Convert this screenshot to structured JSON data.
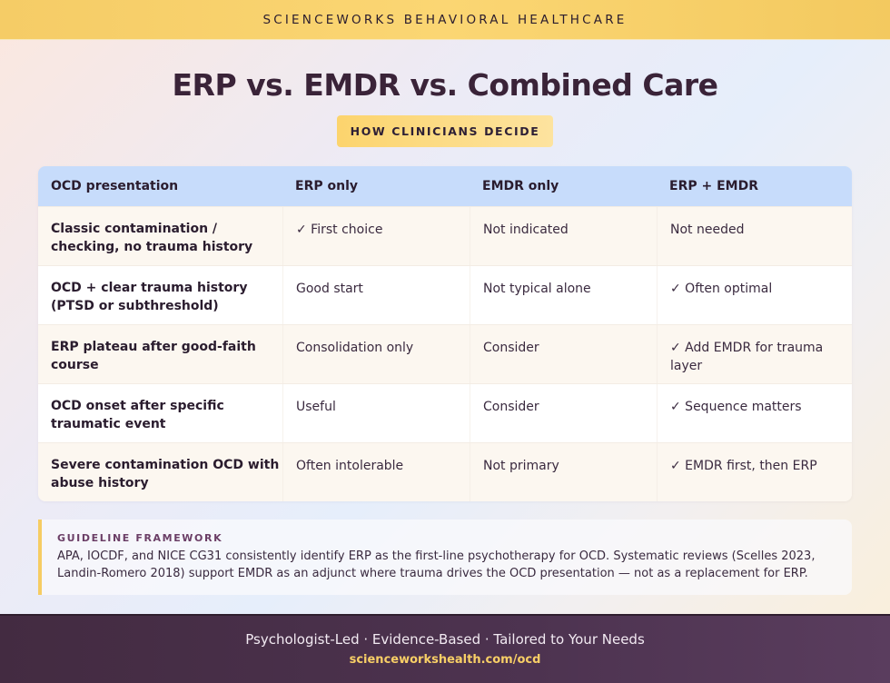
{
  "header": {
    "brand": "SCIENCEWORKS BEHAVIORAL HEALTHCARE",
    "title": "ERP vs. EMDR vs. Combined Care",
    "badge": "HOW CLINICIANS DECIDE"
  },
  "table": {
    "columns": [
      "OCD presentation",
      "ERP only",
      "EMDR only",
      "ERP + EMDR"
    ],
    "rows": [
      [
        "Classic contamination / checking, no trauma history",
        "✓ First choice",
        "Not indicated",
        "Not needed"
      ],
      [
        "OCD + clear trauma history (PTSD or subthreshold)",
        "Good start",
        "Not typical alone",
        "✓ Often optimal"
      ],
      [
        "ERP plateau after good-faith course",
        "Consolidation only",
        "Consider",
        "✓ Add EMDR for trauma layer"
      ],
      [
        "OCD onset after specific traumatic event",
        "Useful",
        "Consider",
        "✓ Sequence matters"
      ],
      [
        "Severe contamination OCD with abuse history",
        "Often intolerable",
        "Not primary",
        "✓ EMDR first, then ERP"
      ]
    ]
  },
  "guideline": {
    "label": "GUIDELINE FRAMEWORK",
    "text": "APA, IOCDF, and NICE CG31 consistently identify ERP as the first-line psychotherapy for OCD. Systematic reviews (Scelles 2023, Landin-Romero 2018) support EMDR as an adjunct where trauma drives the OCD presentation — not as a replacement for ERP."
  },
  "footer": {
    "tagline": "Psychologist-Led · Evidence-Based · Tailored to Your Needs",
    "link": "scienceworkshealth.com/ocd"
  },
  "colors": {
    "top_band": "#fbd673",
    "table_header": "#c7dcfb",
    "row_alt": "#fcf7f0",
    "footer_bg": "#4d3350",
    "footer_link": "#f8cf66",
    "accent_border": "#f6cc63",
    "title_text": "#3a2338"
  }
}
